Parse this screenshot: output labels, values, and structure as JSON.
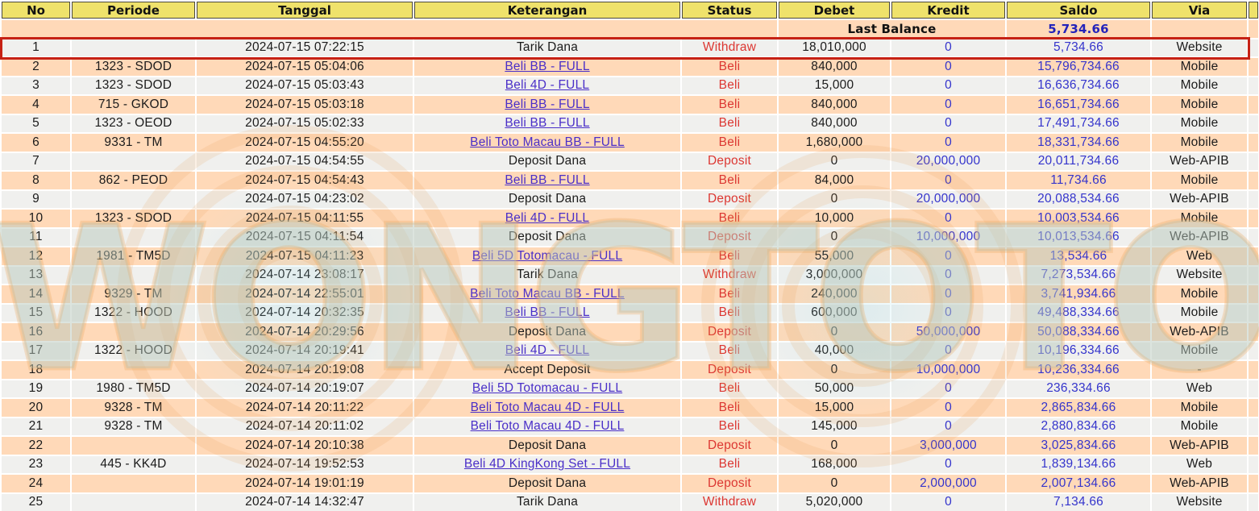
{
  "page": {
    "title": "Transaction History"
  },
  "watermark": {
    "text": "WONGTOTO"
  },
  "colors": {
    "header_bg": "#EFE26B",
    "header_border": "#4A4840",
    "row_light": "#F0F0EE",
    "row_peach": "#FFD9B8",
    "highlight_border": "#C62114",
    "status_red": "#DC3732",
    "amount_blue": "#3434CC",
    "link_purple": "#4A2FC8",
    "last_balance_blue": "#2323BB"
  },
  "table": {
    "columns": [
      "No",
      "Periode",
      "Tanggal",
      "Keterangan",
      "Status",
      "Debet",
      "Kredit",
      "Saldo",
      "Via"
    ],
    "last_balance": {
      "label": "Last Balance",
      "value": "5,734.66"
    },
    "rows": [
      {
        "no": "1",
        "periode": "",
        "tanggal": "2024-07-15 07:22:15",
        "keterangan": "Tarik Dana",
        "is_link": false,
        "status": "Withdraw",
        "debet": "18,010,000",
        "kredit": "0",
        "saldo": "5,734.66",
        "via": "Website",
        "highlighted": true
      },
      {
        "no": "2",
        "periode": "1323 - SDOD",
        "tanggal": "2024-07-15 05:04:06",
        "keterangan": "Beli BB - FULL",
        "is_link": true,
        "status": "Beli",
        "debet": "840,000",
        "kredit": "0",
        "saldo": "15,796,734.66",
        "via": "Mobile",
        "highlighted": false
      },
      {
        "no": "3",
        "periode": "1323 - SDOD",
        "tanggal": "2024-07-15 05:03:43",
        "keterangan": "Beli 4D - FULL",
        "is_link": true,
        "status": "Beli",
        "debet": "15,000",
        "kredit": "0",
        "saldo": "16,636,734.66",
        "via": "Mobile",
        "highlighted": false
      },
      {
        "no": "4",
        "periode": "715 - GKOD",
        "tanggal": "2024-07-15 05:03:18",
        "keterangan": "Beli BB - FULL",
        "is_link": true,
        "status": "Beli",
        "debet": "840,000",
        "kredit": "0",
        "saldo": "16,651,734.66",
        "via": "Mobile",
        "highlighted": false
      },
      {
        "no": "5",
        "periode": "1323 - OEOD",
        "tanggal": "2024-07-15 05:02:33",
        "keterangan": "Beli BB - FULL",
        "is_link": true,
        "status": "Beli",
        "debet": "840,000",
        "kredit": "0",
        "saldo": "17,491,734.66",
        "via": "Mobile",
        "highlighted": false
      },
      {
        "no": "6",
        "periode": "9331 - TM",
        "tanggal": "2024-07-15 04:55:20",
        "keterangan": "Beli Toto Macau BB - FULL",
        "is_link": true,
        "status": "Beli",
        "debet": "1,680,000",
        "kredit": "0",
        "saldo": "18,331,734.66",
        "via": "Mobile",
        "highlighted": false
      },
      {
        "no": "7",
        "periode": "",
        "tanggal": "2024-07-15 04:54:55",
        "keterangan": "Deposit Dana",
        "is_link": false,
        "status": "Deposit",
        "debet": "0",
        "kredit": "20,000,000",
        "saldo": "20,011,734.66",
        "via": "Web-APIB",
        "highlighted": false
      },
      {
        "no": "8",
        "periode": "862 - PEOD",
        "tanggal": "2024-07-15 04:54:43",
        "keterangan": "Beli BB - FULL",
        "is_link": true,
        "status": "Beli",
        "debet": "84,000",
        "kredit": "0",
        "saldo": "11,734.66",
        "via": "Mobile",
        "highlighted": false
      },
      {
        "no": "9",
        "periode": "",
        "tanggal": "2024-07-15 04:23:02",
        "keterangan": "Deposit Dana",
        "is_link": false,
        "status": "Deposit",
        "debet": "0",
        "kredit": "20,000,000",
        "saldo": "20,088,534.66",
        "via": "Web-APIB",
        "highlighted": false
      },
      {
        "no": "10",
        "periode": "1323 - SDOD",
        "tanggal": "2024-07-15 04:11:55",
        "keterangan": "Beli 4D - FULL",
        "is_link": true,
        "status": "Beli",
        "debet": "10,000",
        "kredit": "0",
        "saldo": "10,003,534.66",
        "via": "Mobile",
        "highlighted": false
      },
      {
        "no": "11",
        "periode": "",
        "tanggal": "2024-07-15 04:11:54",
        "keterangan": "Deposit Dana",
        "is_link": false,
        "status": "Deposit",
        "debet": "0",
        "kredit": "10,000,000",
        "saldo": "10,013,534.66",
        "via": "Web-APIB",
        "highlighted": false
      },
      {
        "no": "12",
        "periode": "1981 - TM5D",
        "tanggal": "2024-07-15 04:11:23",
        "keterangan": "Beli 5D Totomacau - FULL",
        "is_link": true,
        "status": "Beli",
        "debet": "55,000",
        "kredit": "0",
        "saldo": "13,534.66",
        "via": "Web",
        "highlighted": false
      },
      {
        "no": "13",
        "periode": "",
        "tanggal": "2024-07-14 23:08:17",
        "keterangan": "Tarik Dana",
        "is_link": false,
        "status": "Withdraw",
        "debet": "3,000,000",
        "kredit": "0",
        "saldo": "7,273,534.66",
        "via": "Website",
        "highlighted": false
      },
      {
        "no": "14",
        "periode": "9329 - TM",
        "tanggal": "2024-07-14 22:55:01",
        "keterangan": "Beli Toto Macau BB - FULL",
        "is_link": true,
        "status": "Beli",
        "debet": "240,000",
        "kredit": "0",
        "saldo": "3,741,934.66",
        "via": "Mobile",
        "highlighted": false
      },
      {
        "no": "15",
        "periode": "1322 - HOOD",
        "tanggal": "2024-07-14 20:32:35",
        "keterangan": "Beli BB - FULL",
        "is_link": true,
        "status": "Beli",
        "debet": "600,000",
        "kredit": "0",
        "saldo": "49,488,334.66",
        "via": "Mobile",
        "highlighted": false
      },
      {
        "no": "16",
        "periode": "",
        "tanggal": "2024-07-14 20:29:56",
        "keterangan": "Deposit Dana",
        "is_link": false,
        "status": "Deposit",
        "debet": "0",
        "kredit": "50,000,000",
        "saldo": "50,088,334.66",
        "via": "Web-APIB",
        "highlighted": false
      },
      {
        "no": "17",
        "periode": "1322 - HOOD",
        "tanggal": "2024-07-14 20:19:41",
        "keterangan": "Beli 4D - FULL",
        "is_link": true,
        "status": "Beli",
        "debet": "40,000",
        "kredit": "0",
        "saldo": "10,196,334.66",
        "via": "Mobile",
        "highlighted": false
      },
      {
        "no": "18",
        "periode": "",
        "tanggal": "2024-07-14 20:19:08",
        "keterangan": "Accept Deposit",
        "is_link": false,
        "status": "Deposit",
        "debet": "0",
        "kredit": "10,000,000",
        "saldo": "10,236,334.66",
        "via": "-",
        "highlighted": false
      },
      {
        "no": "19",
        "periode": "1980 - TM5D",
        "tanggal": "2024-07-14 20:19:07",
        "keterangan": "Beli 5D Totomacau - FULL",
        "is_link": true,
        "status": "Beli",
        "debet": "50,000",
        "kredit": "0",
        "saldo": "236,334.66",
        "via": "Web",
        "highlighted": false
      },
      {
        "no": "20",
        "periode": "9328 - TM",
        "tanggal": "2024-07-14 20:11:22",
        "keterangan": "Beli Toto Macau 4D - FULL",
        "is_link": true,
        "status": "Beli",
        "debet": "15,000",
        "kredit": "0",
        "saldo": "2,865,834.66",
        "via": "Mobile",
        "highlighted": false
      },
      {
        "no": "21",
        "periode": "9328 - TM",
        "tanggal": "2024-07-14 20:11:02",
        "keterangan": "Beli Toto Macau 4D - FULL",
        "is_link": true,
        "status": "Beli",
        "debet": "145,000",
        "kredit": "0",
        "saldo": "2,880,834.66",
        "via": "Mobile",
        "highlighted": false
      },
      {
        "no": "22",
        "periode": "",
        "tanggal": "2024-07-14 20:10:38",
        "keterangan": "Deposit Dana",
        "is_link": false,
        "status": "Deposit",
        "debet": "0",
        "kredit": "3,000,000",
        "saldo": "3,025,834.66",
        "via": "Web-APIB",
        "highlighted": false
      },
      {
        "no": "23",
        "periode": "445 - KK4D",
        "tanggal": "2024-07-14 19:52:53",
        "keterangan": "Beli 4D KingKong Set - FULL",
        "is_link": true,
        "status": "Beli",
        "debet": "168,000",
        "kredit": "0",
        "saldo": "1,839,134.66",
        "via": "Web",
        "highlighted": false
      },
      {
        "no": "24",
        "periode": "",
        "tanggal": "2024-07-14 19:01:19",
        "keterangan": "Deposit Dana",
        "is_link": false,
        "status": "Deposit",
        "debet": "0",
        "kredit": "2,000,000",
        "saldo": "2,007,134.66",
        "via": "Web-APIB",
        "highlighted": false
      },
      {
        "no": "25",
        "periode": "",
        "tanggal": "2024-07-14 14:32:47",
        "keterangan": "Tarik Dana",
        "is_link": false,
        "status": "Withdraw",
        "debet": "5,020,000",
        "kredit": "0",
        "saldo": "7,134.66",
        "via": "Website",
        "highlighted": false
      }
    ]
  }
}
